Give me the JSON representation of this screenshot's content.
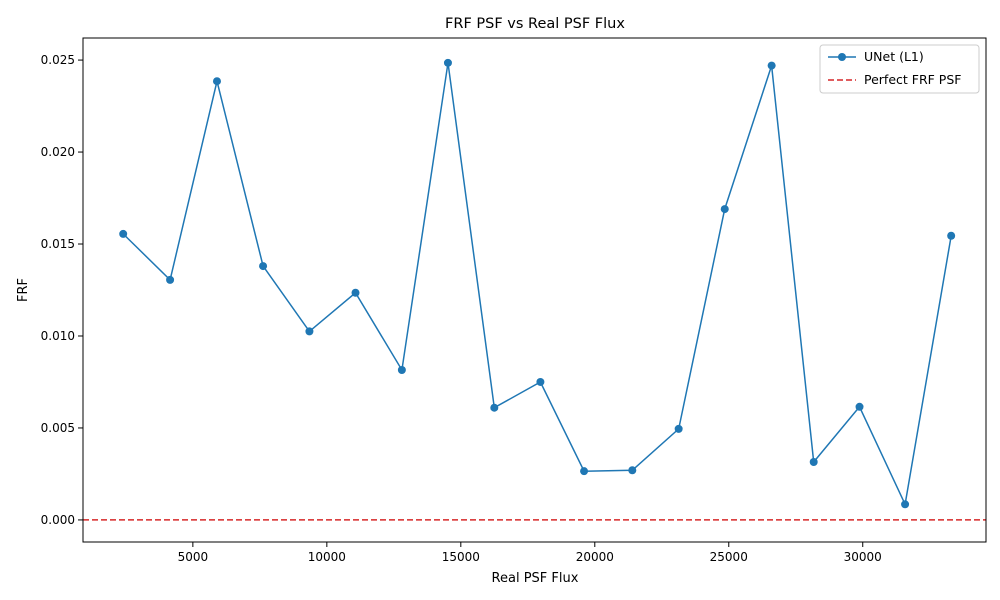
{
  "chart_data": {
    "type": "line",
    "title": "FRF PSF vs Real PSF Flux",
    "xlabel": "Real PSF Flux",
    "ylabel": "FRF",
    "xlim": [
      900,
      34600
    ],
    "ylim": [
      -0.0012,
      0.0262
    ],
    "x_ticks": [
      5000,
      10000,
      15000,
      20000,
      25000,
      30000
    ],
    "x_tick_labels": [
      "5000",
      "10000",
      "15000",
      "20000",
      "25000",
      "30000"
    ],
    "y_ticks": [
      0.0,
      0.005,
      0.01,
      0.015,
      0.02,
      0.025
    ],
    "y_tick_labels": [
      "0.000",
      "0.005",
      "0.010",
      "0.015",
      "0.020",
      "0.025"
    ],
    "grid": false,
    "legend_position": "top-right",
    "series": [
      {
        "name": "UNet (L1)",
        "color": "#1f77b4",
        "marker": "circle",
        "x": [
          2400,
          4150,
          5900,
          7620,
          9350,
          11070,
          12800,
          14520,
          16250,
          17970,
          19600,
          21400,
          23130,
          24850,
          26600,
          28170,
          29880,
          31580,
          33300
        ],
        "y": [
          0.01555,
          0.01305,
          0.02385,
          0.0138,
          0.01025,
          0.01235,
          0.00815,
          0.02485,
          0.0061,
          0.0075,
          0.00265,
          0.0027,
          0.00495,
          0.0169,
          0.0247,
          0.00315,
          0.00615,
          0.00085,
          0.01545
        ]
      }
    ],
    "reference_line": {
      "name": "Perfect FRF PSF",
      "y": 0.0,
      "color": "#d62728",
      "style": "dashed"
    }
  }
}
